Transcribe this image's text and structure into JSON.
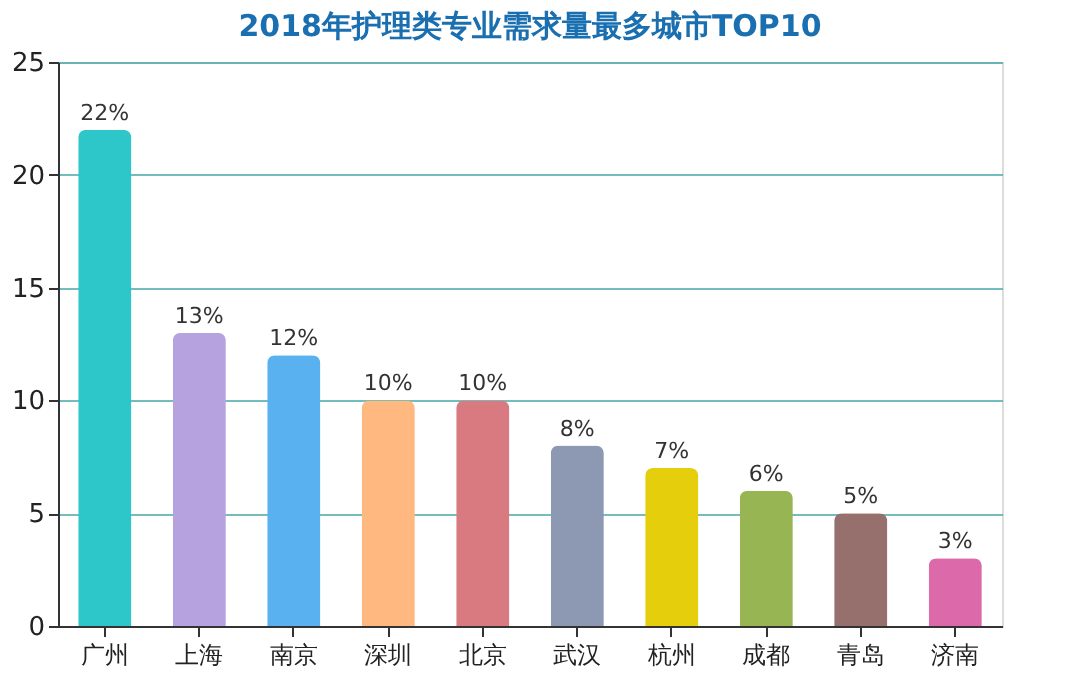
{
  "chart_data": {
    "type": "bar",
    "title": "2018年护理类专业需求量最多城市TOP10",
    "categories": [
      "广州",
      "上海",
      "南京",
      "深圳",
      "北京",
      "武汉",
      "杭州",
      "成都",
      "青岛",
      "济南"
    ],
    "values": [
      22,
      13,
      12,
      10,
      10,
      8,
      7,
      6,
      5,
      3
    ],
    "colors": [
      "#2ec7c9",
      "#b6a2de",
      "#5ab1ef",
      "#ffb980",
      "#d87a80",
      "#8d98b3",
      "#e5cf0d",
      "#97b552",
      "#95706d",
      "#dc69aa"
    ],
    "value_labels": [
      "22%",
      "13%",
      "12%",
      "10%",
      "10%",
      "8%",
      "7%",
      "6%",
      "5%",
      "3%"
    ],
    "ylim": [
      0,
      25
    ],
    "yticks": [
      0,
      5,
      10,
      15,
      20,
      25
    ],
    "grid": "y"
  }
}
